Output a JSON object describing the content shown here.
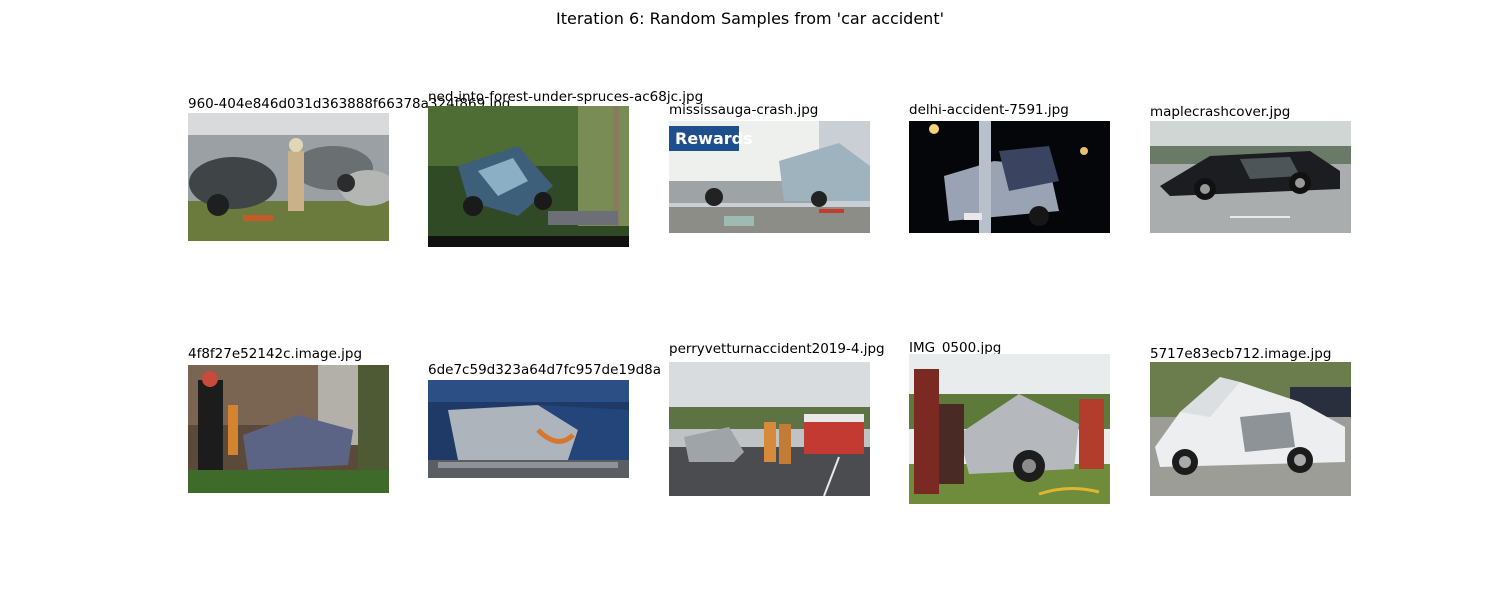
{
  "figure": {
    "title": "Iteration 6: Random Samples from 'car accident'"
  },
  "samples": [
    {
      "filename": "960-404e846d031d363888f66378a324f869.jpg",
      "scene": "wrecked-cars-scrapyard-firefighter-photo"
    },
    {
      "filename": "ned-into-forest-under-spruces-ac68jc.jpg",
      "scene": "overturned-car-in-forest-photo"
    },
    {
      "filename": "mississauga-crash.jpg",
      "scene": "car-crushed-by-truck-photo"
    },
    {
      "filename": "delhi-accident-7591.jpg",
      "scene": "car-hit-pole-at-night-photo"
    },
    {
      "filename": "maplecrashcover.jpg",
      "scene": "black-sedan-crash-on-road-photo"
    },
    {
      "filename": "4f8f27e52142c.image.jpg",
      "scene": "car-into-house-rescue-photo"
    },
    {
      "filename": "6de7c59d323a64d7fc957de19d8a",
      "scene": "dented-blue-car-front-photo"
    },
    {
      "filename": "perryvetturnaccident2019-4.jpg",
      "scene": "highway-crash-with-firetruck-photo"
    },
    {
      "filename": "IMG_0500.jpg",
      "scene": "firefighters-extracting-driver-photo"
    },
    {
      "filename": "5717e83ecb712.image.jpg",
      "scene": "white-sedan-side-impact-photo"
    }
  ]
}
